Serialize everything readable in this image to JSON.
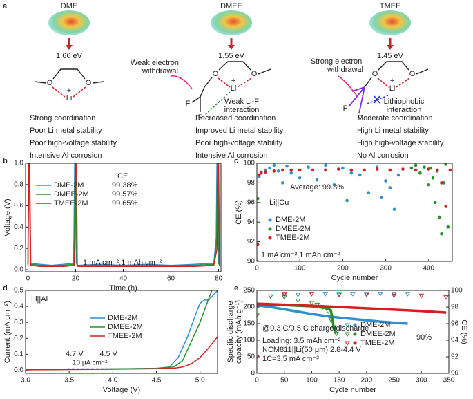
{
  "panel_a": {
    "label": "a",
    "columns": [
      {
        "title": "DME",
        "energy": "1.66 eV",
        "atoms": [
          "O",
          "O",
          "Li",
          "+"
        ],
        "notes": [],
        "properties": [
          "Strong coordination",
          "Poor Li metal stability",
          "Poor high-voltage stability",
          "Intensive Al corrosion"
        ],
        "property_color": "#222222"
      },
      {
        "title": "DMEE",
        "energy": "1.55 eV",
        "atoms": [
          "O",
          "O",
          "Li",
          "+",
          "F",
          "F"
        ],
        "notes": [
          {
            "text": "Weak electron",
            "color": "#e0198a"
          },
          {
            "text": "withdrawal",
            "color": "#e0198a"
          },
          {
            "text": "Weak Li-F",
            "color": "#1d8a2e"
          },
          {
            "text": "interaction",
            "color": "#1d8a2e"
          }
        ],
        "properties": [
          "Decreased coordination",
          "Improved Li metal stability",
          "Poor high-voltage stability",
          "Intensive Al corrosion"
        ],
        "property_color": "#222222"
      },
      {
        "title": "TMEE",
        "energy": "1.45 eV",
        "atoms": [
          "O",
          "O",
          "Li",
          "+",
          "F",
          "F"
        ],
        "notes": [
          {
            "text": "Strong electron",
            "color": "#e0198a"
          },
          {
            "text": "withdrawal",
            "color": "#e0198a"
          },
          {
            "text": "Lithiophobic",
            "color": "#1f2fd0"
          },
          {
            "text": "interaction",
            "color": "#1f2fd0"
          }
        ],
        "properties": [
          "Moderate coordination",
          "High Li metal stability",
          "High high-voltage stability",
          "No Al corrosion"
        ],
        "property_color": "#d42020"
      }
    ]
  },
  "chart_data": [
    {
      "type": "line",
      "panel": "b",
      "xlabel": "Time (h)",
      "ylabel": "Voltage (V)",
      "xlim": [
        -1,
        81
      ],
      "xticks": [
        0,
        20,
        40,
        60,
        80
      ],
      "ylim": [
        -0.02,
        1.0
      ],
      "yticks": [
        {
          "value": 0,
          "label": "0.0"
        },
        {
          "value": 0.2,
          "label": "0.2"
        },
        {
          "value": 0.4,
          "label": "0.4"
        },
        {
          "value": 0.6,
          "label": "0.6"
        },
        {
          "value": 0.8,
          "label": "0.8"
        },
        {
          "value": 1.0,
          "label": "1.0"
        }
      ],
      "legend_title": "CE",
      "annotations": [
        {
          "text": "1 mA cm⁻²,1 mAh cm⁻²",
          "color": "#222222"
        }
      ],
      "series": [
        {
          "name": "DME-2M",
          "color": "#2f8fd0",
          "ce_label": "99.38%",
          "x": [
            0,
            0.2,
            0.5,
            1,
            5,
            10,
            15,
            19,
            19.3,
            19.6,
            20,
            20.3,
            21,
            30,
            40,
            50,
            60,
            70,
            78,
            79,
            79.3,
            79.6,
            80,
            80.5
          ],
          "values": [
            0.05,
            1.0,
            1.0,
            0.06,
            0.05,
            0.04,
            0.05,
            0.06,
            0.3,
            1.0,
            1.0,
            0.06,
            0.04,
            0.05,
            0.04,
            0.05,
            0.04,
            0.05,
            0.06,
            0.3,
            1.0,
            1.0,
            0.06,
            0.04
          ]
        },
        {
          "name": "DMEE-2M",
          "color": "#2a8f2a",
          "ce_label": "99.57%",
          "x": [
            0,
            0.3,
            0.6,
            1.1,
            5,
            10,
            15,
            19.2,
            19.5,
            19.8,
            20.2,
            20.5,
            21,
            30,
            40,
            50,
            60,
            70,
            78,
            79.2,
            79.5,
            79.8,
            80.2,
            80.6
          ],
          "values": [
            0.05,
            1.0,
            1.0,
            0.05,
            0.04,
            0.04,
            0.04,
            0.05,
            0.25,
            1.0,
            1.0,
            0.05,
            0.04,
            0.04,
            0.04,
            0.04,
            0.04,
            0.04,
            0.05,
            0.25,
            1.0,
            1.0,
            0.05,
            0.04
          ]
        },
        {
          "name": "TMEE-2M",
          "color": "#d42020",
          "ce_label": "99.65%",
          "x": [
            0,
            0.4,
            0.7,
            1.2,
            5,
            10,
            15,
            19.4,
            19.7,
            20,
            20.4,
            20.7,
            21,
            30,
            40,
            50,
            60,
            70,
            78,
            79.4,
            79.7,
            80,
            80.4,
            80.8
          ],
          "values": [
            0.04,
            1.0,
            1.0,
            0.04,
            0.03,
            0.03,
            0.03,
            0.04,
            0.2,
            1.0,
            1.0,
            0.04,
            0.03,
            0.03,
            0.03,
            0.03,
            0.03,
            0.03,
            0.04,
            0.2,
            1.0,
            1.0,
            0.04,
            0.03
          ]
        }
      ]
    },
    {
      "type": "scatter",
      "panel": "c",
      "xlabel": "Cycle number",
      "ylabel": "CE (%)",
      "xlim": [
        0,
        455
      ],
      "xticks": [
        0,
        100,
        200,
        300,
        400
      ],
      "ylim": [
        90,
        100
      ],
      "yticks": [
        90,
        92,
        94,
        96,
        98,
        100
      ],
      "annotations": [
        {
          "text": "Average: 99.3%",
          "color": "#d42020"
        },
        {
          "text": "Li||Cu",
          "color": "#222222"
        },
        {
          "text": "1 mA cm⁻²,1 mAh cm⁻²",
          "color": "#222222"
        }
      ],
      "series": [
        {
          "name": "DME-2M",
          "color": "#2f8fd0",
          "x": [
            1,
            5,
            10,
            20,
            30,
            40,
            50,
            60,
            70,
            80,
            100,
            120,
            140,
            160,
            180,
            200,
            210,
            220,
            240,
            260,
            280,
            290,
            300,
            310,
            320,
            330
          ],
          "values": [
            90,
            98.6,
            99.1,
            99.3,
            99.5,
            99.8,
            99.2,
            98.0,
            99.7,
            99.0,
            98.5,
            99.6,
            98.3,
            99.8,
            97.8,
            99.5,
            96.2,
            99.0,
            98.8,
            97.0,
            99.6,
            96.5,
            98.2,
            97.5,
            95.3,
            98.8
          ]
        },
        {
          "name": "DMEE-2M",
          "color": "#2a8f2a",
          "x": [
            2,
            360,
            370,
            380,
            390,
            400,
            405,
            410,
            415,
            420,
            425,
            430,
            435,
            440,
            445
          ],
          "values": [
            96.4,
            99.5,
            99.8,
            99.0,
            99.6,
            97.8,
            99.5,
            98.5,
            96.0,
            99.2,
            94.5,
            92.8,
            98.0,
            99.9,
            93.5
          ]
        },
        {
          "name": "TMEE-2M",
          "color": "#d42020",
          "x": [
            2,
            5,
            10,
            20,
            40,
            60,
            80,
            100,
            130,
            160,
            190,
            220,
            250,
            280,
            310,
            340,
            370,
            400,
            420,
            430,
            440,
            450
          ],
          "values": [
            91.7,
            98.8,
            99.0,
            99.1,
            99.2,
            99.3,
            99.3,
            99.3,
            99.3,
            99.3,
            99.4,
            99.3,
            99.3,
            99.4,
            99.3,
            99.4,
            99.3,
            99.4,
            99.3,
            98.0,
            95.6,
            99.3
          ]
        }
      ]
    },
    {
      "type": "line",
      "panel": "d",
      "xlabel": "Voltage (V)",
      "ylabel": "Current (mA cm⁻²)",
      "xlim": [
        3.0,
        5.2
      ],
      "xticks": [
        {
          "value": 3.0,
          "label": "3.0"
        },
        {
          "value": 3.5,
          "label": "3.5"
        },
        {
          "value": 4.0,
          "label": "4.0"
        },
        {
          "value": 4.5,
          "label": "4.5"
        },
        {
          "value": 5.0,
          "label": "5.0"
        }
      ],
      "ylim": [
        -0.02,
        0.5
      ],
      "yticks": [
        {
          "value": 0,
          "label": "0.0"
        },
        {
          "value": 0.1,
          "label": "0.1"
        },
        {
          "value": 0.2,
          "label": "0.2"
        },
        {
          "value": 0.3,
          "label": "0.3"
        },
        {
          "value": 0.4,
          "label": "0.4"
        },
        {
          "value": 0.5,
          "label": "0.5"
        }
      ],
      "reference_line": 0.01,
      "reference_label": "10 μA cm⁻²",
      "annotations": [
        {
          "text": "Li||Al",
          "color": "#222222"
        },
        {
          "text": "4.5 V",
          "color": "#2a8f2a"
        },
        {
          "text": "4.7 V",
          "color": "#d42020"
        }
      ],
      "series": [
        {
          "name": "DME-2M",
          "color": "#2f8fd0",
          "x": [
            3.0,
            3.5,
            4.0,
            4.5,
            4.65,
            4.75,
            4.85,
            4.95,
            5.0,
            5.05,
            5.1,
            5.15,
            5.2
          ],
          "values": [
            0.002,
            0.005,
            0.008,
            0.012,
            0.02,
            0.08,
            0.2,
            0.35,
            0.42,
            0.44,
            0.44,
            0.47,
            0.5
          ]
        },
        {
          "name": "DMEE-2M",
          "color": "#2a8f2a",
          "x": [
            3.0,
            3.5,
            4.0,
            4.5,
            4.7,
            4.8,
            4.9,
            5.0,
            5.1,
            5.15
          ],
          "values": [
            0.002,
            0.005,
            0.008,
            0.011,
            0.02,
            0.06,
            0.18,
            0.3,
            0.45,
            0.52
          ]
        },
        {
          "name": "TMEE-2M",
          "color": "#d42020",
          "x": [
            3.0,
            3.5,
            4.0,
            4.5,
            4.7,
            4.8,
            4.9,
            5.0,
            5.1,
            5.2
          ],
          "values": [
            0.002,
            0.004,
            0.006,
            0.009,
            0.012,
            0.02,
            0.04,
            0.08,
            0.14,
            0.21
          ]
        }
      ]
    },
    {
      "type": "line",
      "panel": "e",
      "xlabel": "Cycle number",
      "ylabel": [
        "Specific discharge",
        "capacity (mAh g⁻¹)"
      ],
      "y2label": "CE (%)",
      "xlim": [
        0,
        350
      ],
      "xticks": [
        0,
        50,
        100,
        150,
        200,
        250,
        300,
        350
      ],
      "ylim": [
        0,
        250
      ],
      "yticks": [
        0,
        50,
        100,
        150,
        200,
        250
      ],
      "y2lim": [
        90,
        100
      ],
      "y2ticks": [
        90,
        92,
        94,
        96,
        98,
        100
      ],
      "annotations": [
        {
          "text": "@0.3 C/0.5 C charge/discharge",
          "color": "#222222"
        },
        {
          "text": "Loading: 3.5 mAh cm⁻²",
          "color": "#222222"
        },
        {
          "text": "NCM811||Li(50 μm) 2.8-4.4 V",
          "color": "#222222"
        },
        {
          "text": "1C=3.5 mA cm⁻²",
          "color": "#222222"
        },
        {
          "text": "90%",
          "color": "#d42020"
        }
      ],
      "series": [
        {
          "name": "DME-2M",
          "color": "#2f8fd0",
          "x": [
            0,
            25,
            50,
            75,
            100,
            125,
            150,
            175,
            200,
            225,
            250,
            275
          ],
          "values": [
            205,
            200,
            193,
            186,
            179,
            173,
            168,
            164,
            160,
            156,
            153,
            150
          ],
          "ce": [
            97,
            99.3,
            99.5,
            99.5,
            99.6,
            99.6,
            99.6,
            99.6,
            99.6,
            99.6,
            99.6,
            99.6
          ]
        },
        {
          "name": "DMEE-2M",
          "color": "#2a8f2a",
          "x": [
            0,
            25,
            50,
            75,
            100,
            110,
            120,
            130,
            135,
            140,
            145
          ],
          "values": [
            208,
            207,
            206,
            204,
            202,
            200,
            198,
            195,
            190,
            140,
            120
          ],
          "ce": [
            97,
            99.3,
            99.2,
            98.8,
            98.5,
            98.3,
            98.0,
            97.5,
            96.5,
            95.5,
            94.8
          ]
        },
        {
          "name": "TMEE-2M",
          "color": "#d42020",
          "x": [
            0,
            50,
            100,
            150,
            200,
            250,
            300,
            345
          ],
          "values": [
            210,
            207,
            204,
            200,
            196,
            192,
            188,
            183
          ],
          "ce": [
            92,
            99.6,
            99.6,
            99.5,
            99.5,
            99.4,
            99.4,
            99.2
          ]
        }
      ]
    }
  ]
}
